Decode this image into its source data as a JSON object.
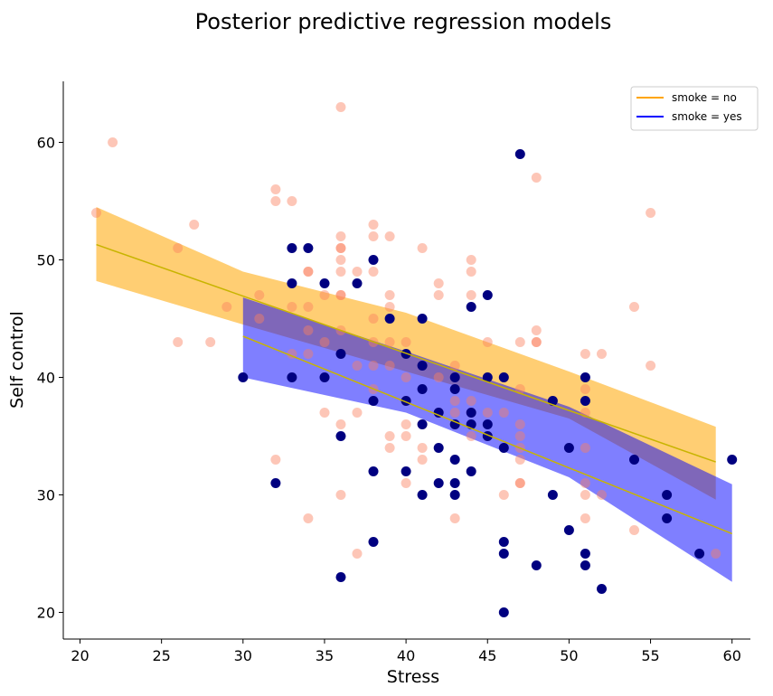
{
  "chart_data": {
    "type": "scatter",
    "title": "Posterior predictive regression models",
    "xlabel": "Stress",
    "ylabel": "Self control",
    "xlim": [
      19,
      62
    ],
    "ylim": [
      18,
      65
    ],
    "xticks": [
      20,
      25,
      30,
      35,
      40,
      45,
      50,
      55,
      60
    ],
    "yticks": [
      20,
      30,
      40,
      50,
      60
    ],
    "grid": false,
    "legend_position": "top-right",
    "series": [
      {
        "name": "smoke = no",
        "color": "#ffa500",
        "point_color": "#fa8060",
        "line_color": "#c8b400",
        "band_color": "#ffa500",
        "line": {
          "x": [
            21,
            59
          ],
          "y": [
            51.3,
            32.8
          ]
        },
        "band": {
          "x": [
            21,
            30,
            40,
            50,
            59
          ],
          "lower": [
            48.2,
            44.5,
            40.5,
            36.5,
            29.6
          ],
          "upper": [
            54.5,
            49.0,
            45.5,
            40.5,
            35.8
          ]
        },
        "points": [
          [
            21,
            54
          ],
          [
            22,
            60
          ],
          [
            26,
            51
          ],
          [
            26,
            43
          ],
          [
            27,
            53
          ],
          [
            28,
            43
          ],
          [
            29,
            46
          ],
          [
            31,
            47
          ],
          [
            31,
            45
          ],
          [
            32,
            56
          ],
          [
            32,
            55
          ],
          [
            32,
            33
          ],
          [
            33,
            55
          ],
          [
            33,
            46
          ],
          [
            33,
            42
          ],
          [
            34,
            49
          ],
          [
            34,
            49
          ],
          [
            34,
            46
          ],
          [
            34,
            44
          ],
          [
            34,
            42
          ],
          [
            34,
            28
          ],
          [
            35,
            47
          ],
          [
            35,
            43
          ],
          [
            35,
            37
          ],
          [
            36,
            63
          ],
          [
            36,
            52
          ],
          [
            36,
            51
          ],
          [
            36,
            51
          ],
          [
            36,
            50
          ],
          [
            36,
            49
          ],
          [
            36,
            47
          ],
          [
            36,
            47
          ],
          [
            36,
            44
          ],
          [
            36,
            36
          ],
          [
            36,
            30
          ],
          [
            37,
            49
          ],
          [
            37,
            41
          ],
          [
            37,
            37
          ],
          [
            37,
            25
          ],
          [
            38,
            53
          ],
          [
            38,
            52
          ],
          [
            38,
            49
          ],
          [
            38,
            45
          ],
          [
            38,
            43
          ],
          [
            38,
            41
          ],
          [
            38,
            39
          ],
          [
            39,
            52
          ],
          [
            39,
            47
          ],
          [
            39,
            46
          ],
          [
            39,
            43
          ],
          [
            39,
            41
          ],
          [
            39,
            35
          ],
          [
            39,
            34
          ],
          [
            40,
            43
          ],
          [
            40,
            42
          ],
          [
            40,
            40
          ],
          [
            40,
            38
          ],
          [
            40,
            36
          ],
          [
            40,
            35
          ],
          [
            40,
            31
          ],
          [
            41,
            51
          ],
          [
            41,
            36
          ],
          [
            41,
            34
          ],
          [
            41,
            33
          ],
          [
            42,
            48
          ],
          [
            42,
            47
          ],
          [
            42,
            40
          ],
          [
            42,
            37
          ],
          [
            43,
            41
          ],
          [
            43,
            38
          ],
          [
            43,
            37
          ],
          [
            43,
            36
          ],
          [
            43,
            28
          ],
          [
            44,
            50
          ],
          [
            44,
            49
          ],
          [
            44,
            47
          ],
          [
            44,
            38
          ],
          [
            44,
            37
          ],
          [
            44,
            35
          ],
          [
            45,
            43
          ],
          [
            45,
            37
          ],
          [
            45,
            35
          ],
          [
            46,
            40
          ],
          [
            46,
            37
          ],
          [
            46,
            30
          ],
          [
            47,
            43
          ],
          [
            47,
            39
          ],
          [
            47,
            36
          ],
          [
            47,
            35
          ],
          [
            47,
            34
          ],
          [
            47,
            33
          ],
          [
            47,
            31
          ],
          [
            47,
            31
          ],
          [
            48,
            57
          ],
          [
            48,
            44
          ],
          [
            48,
            43
          ],
          [
            48,
            43
          ],
          [
            49,
            38
          ],
          [
            51,
            42
          ],
          [
            51,
            39
          ],
          [
            51,
            37
          ],
          [
            51,
            34
          ],
          [
            51,
            31
          ],
          [
            51,
            30
          ],
          [
            51,
            28
          ],
          [
            52,
            42
          ],
          [
            52,
            30
          ],
          [
            54,
            46
          ],
          [
            54,
            27
          ],
          [
            55,
            54
          ],
          [
            55,
            41
          ],
          [
            59,
            25
          ]
        ]
      },
      {
        "name": "smoke = yes",
        "color": "#0000ff",
        "point_color": "#000080",
        "line_color": "#c8b400",
        "band_color": "#0000ff",
        "line": {
          "x": [
            30,
            60
          ],
          "y": [
            43.5,
            26.7
          ]
        },
        "band": {
          "x": [
            30,
            40,
            50,
            60
          ],
          "lower": [
            40.0,
            37.0,
            31.5,
            22.6
          ],
          "upper": [
            46.8,
            42.2,
            37.5,
            30.9
          ]
        },
        "points": [
          [
            30,
            40
          ],
          [
            32,
            31
          ],
          [
            33,
            51
          ],
          [
            33,
            48
          ],
          [
            33,
            40
          ],
          [
            34,
            51
          ],
          [
            35,
            48
          ],
          [
            35,
            40
          ],
          [
            36,
            42
          ],
          [
            36,
            35
          ],
          [
            36,
            23
          ],
          [
            37,
            48
          ],
          [
            38,
            50
          ],
          [
            38,
            38
          ],
          [
            38,
            32
          ],
          [
            38,
            26
          ],
          [
            39,
            45
          ],
          [
            40,
            42
          ],
          [
            40,
            38
          ],
          [
            40,
            32
          ],
          [
            41,
            45
          ],
          [
            41,
            41
          ],
          [
            41,
            39
          ],
          [
            41,
            36
          ],
          [
            41,
            30
          ],
          [
            42,
            37
          ],
          [
            42,
            34
          ],
          [
            42,
            31
          ],
          [
            43,
            40
          ],
          [
            43,
            39
          ],
          [
            43,
            36
          ],
          [
            43,
            33
          ],
          [
            43,
            31
          ],
          [
            43,
            30
          ],
          [
            44,
            46
          ],
          [
            44,
            37
          ],
          [
            44,
            36
          ],
          [
            44,
            32
          ],
          [
            45,
            47
          ],
          [
            45,
            40
          ],
          [
            45,
            36
          ],
          [
            45,
            35
          ],
          [
            46,
            40
          ],
          [
            46,
            34
          ],
          [
            46,
            26
          ],
          [
            46,
            25
          ],
          [
            46,
            20
          ],
          [
            47,
            59
          ],
          [
            48,
            24
          ],
          [
            49,
            38
          ],
          [
            49,
            30
          ],
          [
            50,
            34
          ],
          [
            50,
            27
          ],
          [
            51,
            40
          ],
          [
            51,
            38
          ],
          [
            51,
            25
          ],
          [
            51,
            24
          ],
          [
            52,
            22
          ],
          [
            54,
            33
          ],
          [
            56,
            30
          ],
          [
            56,
            28
          ],
          [
            58,
            25
          ],
          [
            60,
            33
          ]
        ]
      }
    ]
  }
}
